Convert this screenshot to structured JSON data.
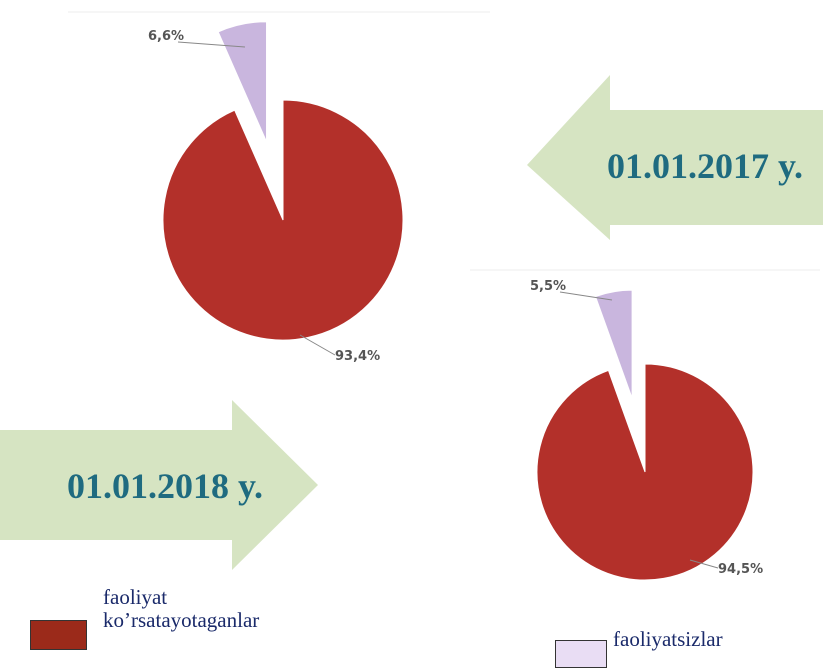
{
  "chart_data": [
    {
      "type": "pie",
      "title": "01.01.2017 y.",
      "values": [
        93.4,
        6.6
      ],
      "value_labels": [
        "93,4%",
        "6,6%"
      ],
      "colors": [
        "#b3302a",
        "#c9b6de"
      ]
    },
    {
      "type": "pie",
      "title": "01.01.2018 y.",
      "values": [
        94.5,
        5.5
      ],
      "value_labels": [
        "94,5%",
        "5,5%"
      ],
      "colors": [
        "#b3302a",
        "#c9b6de"
      ]
    }
  ],
  "legend": [
    {
      "name": "faoliyat ko’rsatayotaganlar",
      "color": "#9b2a1a"
    },
    {
      "name": "faoliyatsizlar",
      "color": "#e9ddf4"
    }
  ]
}
